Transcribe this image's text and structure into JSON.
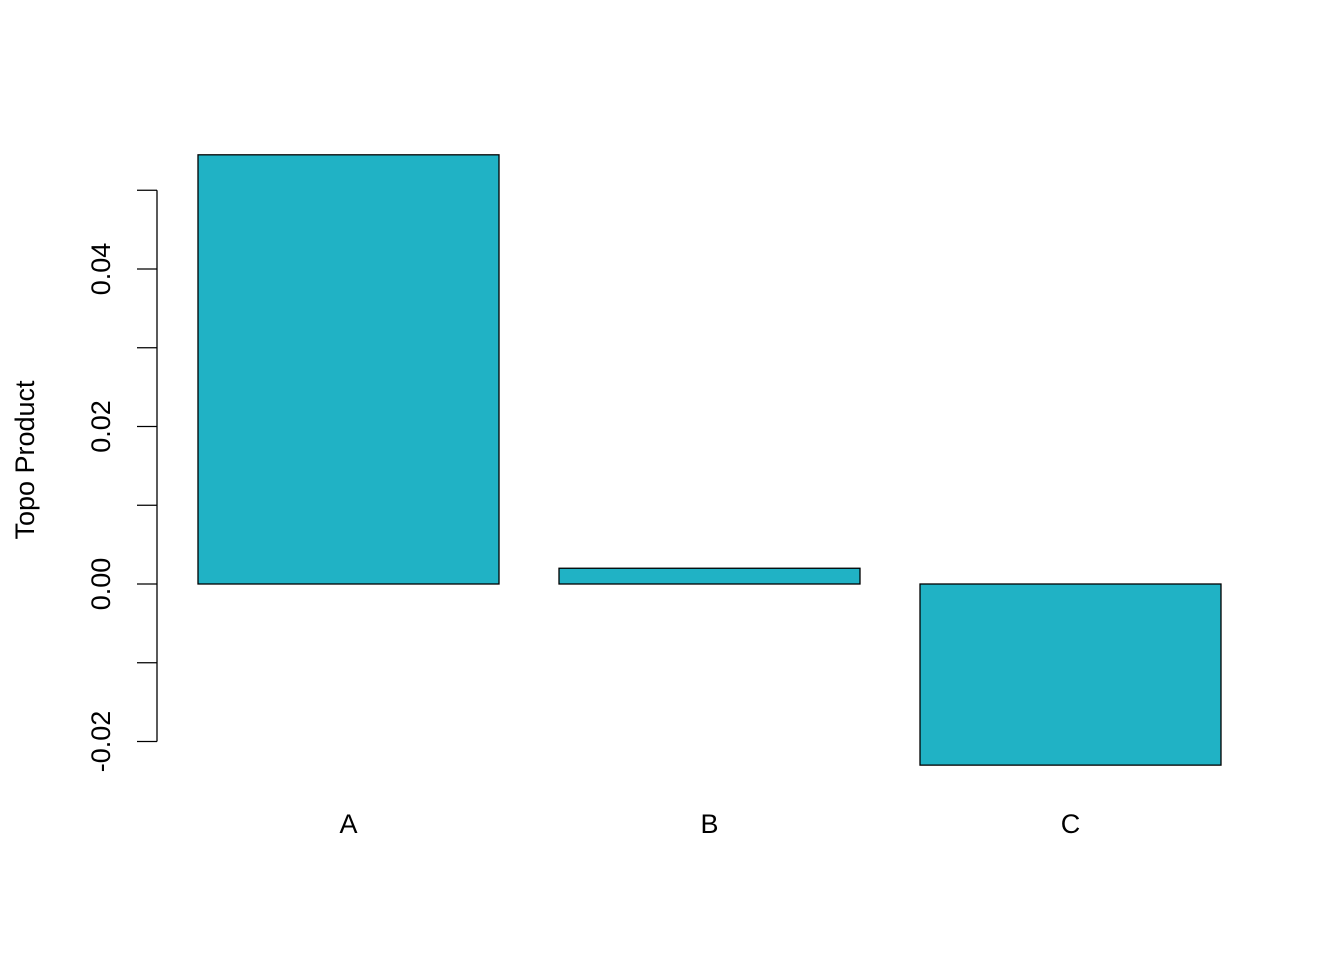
{
  "chart_data": {
    "type": "bar",
    "title": "",
    "xlabel": "",
    "ylabel": "Topo Product",
    "categories": [
      "A",
      "B",
      "C"
    ],
    "values": [
      0.0545,
      0.002,
      -0.023
    ],
    "ylim": [
      -0.02,
      0.05
    ],
    "yticks": [
      -0.02,
      -0.01,
      0.0,
      0.01,
      0.02,
      0.03,
      0.04,
      0.05
    ],
    "ytick_labels": [
      "-0.02",
      "",
      "0.00",
      "",
      "0.02",
      "",
      "0.04",
      ""
    ],
    "grid": false,
    "bar_color": "#20b2c5",
    "edge_color": "#000000"
  }
}
